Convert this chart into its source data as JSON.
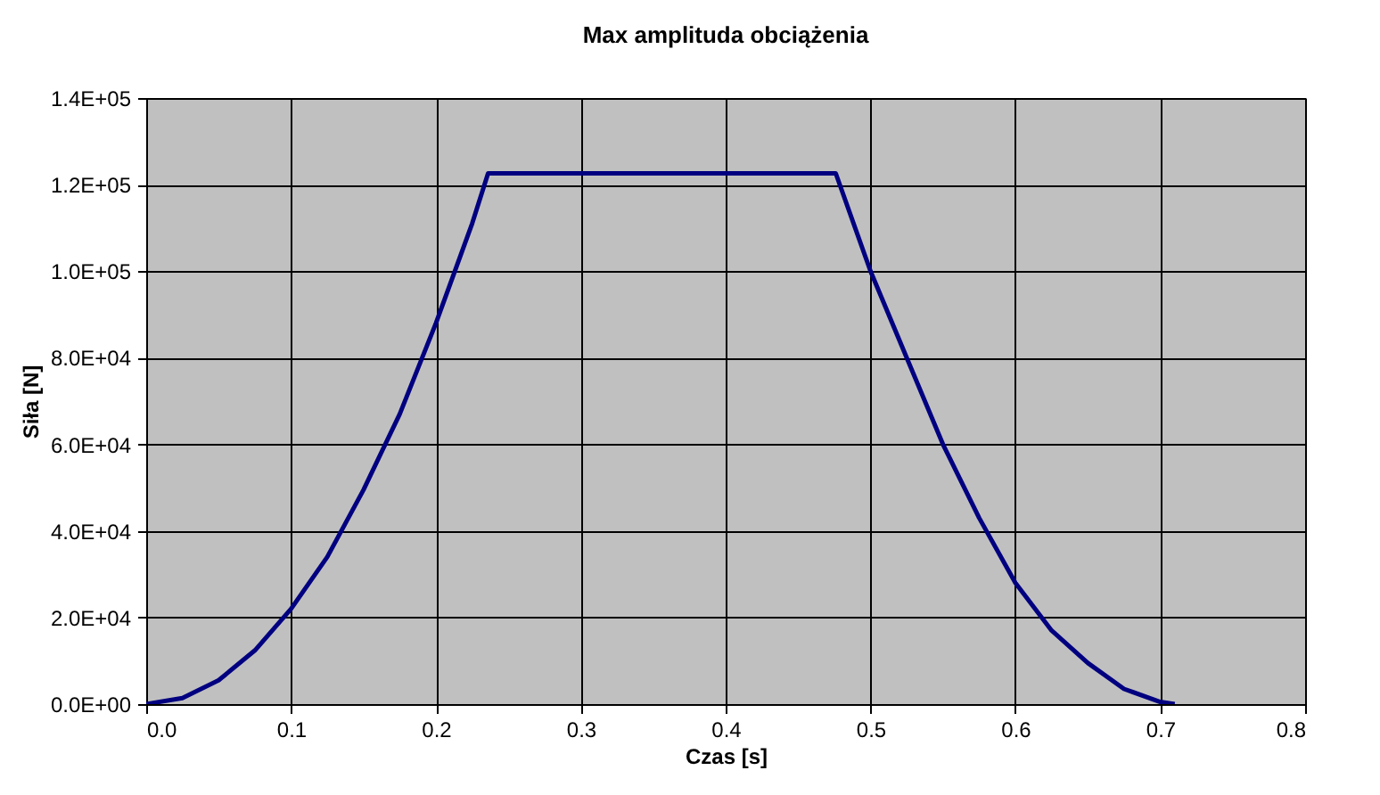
{
  "chart_data": {
    "type": "line",
    "title": "Max amplituda obciążenia",
    "xlabel": "Czas [s]",
    "ylabel": "Siła [N]",
    "x": [
      0,
      0.025,
      0.05,
      0.075,
      0.1,
      0.125,
      0.15,
      0.175,
      0.2,
      0.225,
      0.236,
      0.476,
      0.5,
      0.525,
      0.55,
      0.575,
      0.6,
      0.625,
      0.65,
      0.675,
      0.7,
      0.71
    ],
    "series": [
      {
        "color": "#000080",
        "values": [
          0,
          1400,
          5500,
          12400,
          22000,
          34000,
          49500,
          67000,
          88000,
          111000,
          122600,
          122600,
          100000,
          80000,
          60000,
          43000,
          28000,
          17000,
          9500,
          3500,
          500,
          0
        ]
      }
    ],
    "xlim": [
      0,
      0.8
    ],
    "xticks": [
      {
        "value": 0,
        "label": "0.0"
      },
      0.1,
      0.2,
      0.3,
      0.4,
      0.5,
      0.6,
      0.7,
      0.8
    ],
    "ylim": [
      0,
      140000
    ],
    "yticks": [
      {
        "value": 0,
        "label": "0.0E+00"
      },
      {
        "value": 20000,
        "label": "2.0E+04"
      },
      {
        "value": 40000,
        "label": "4.0E+04"
      },
      {
        "value": 60000,
        "label": "6.0E+04"
      },
      {
        "value": 80000,
        "label": "8.0E+04"
      },
      {
        "value": 100000,
        "label": "1.0E+05"
      },
      {
        "value": 120000,
        "label": "1.2E+05"
      },
      {
        "value": 140000,
        "label": "1.4E+05"
      }
    ],
    "grid": true,
    "legend": false,
    "marker": "none",
    "line_style": "solid"
  }
}
